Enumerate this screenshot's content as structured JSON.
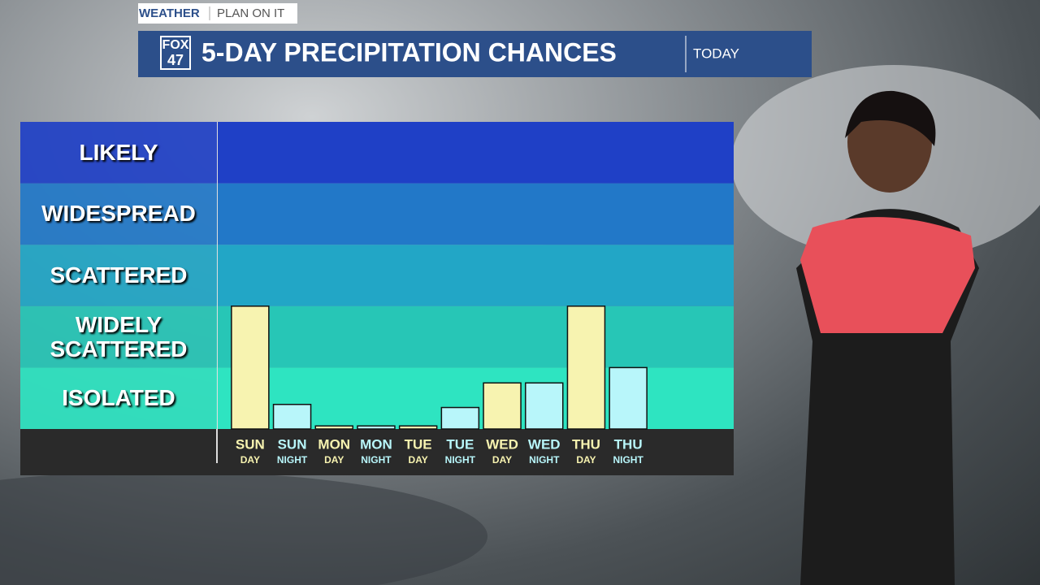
{
  "header": {
    "section": "WEATHER",
    "tagline": "PLAN ON IT",
    "logo_top": "FOX",
    "logo_bottom": "47",
    "badge": "TODAY"
  },
  "chart_data": {
    "type": "bar",
    "title": "5-DAY PRECIPITATION CHANCES",
    "categories": [
      "SUN",
      "SUN",
      "MON",
      "MON",
      "TUE",
      "TUE",
      "WED",
      "WED",
      "THU",
      "THU"
    ],
    "category_periods": [
      "DAY",
      "NIGHT",
      "DAY",
      "NIGHT",
      "DAY",
      "NIGHT",
      "DAY",
      "NIGHT",
      "DAY",
      "NIGHT"
    ],
    "values": [
      2.0,
      0.4,
      0.05,
      0.05,
      0.05,
      0.35,
      0.75,
      0.75,
      2.0,
      1.0
    ],
    "colors": [
      "#f7f3b0",
      "#b8f6fa",
      "#f7f3b0",
      "#b8f6fa",
      "#f7f3b0",
      "#b8f6fa",
      "#f7f3b0",
      "#b8f6fa",
      "#f7f3b0",
      "#b8f6fa"
    ],
    "ylim": [
      0,
      5
    ],
    "yticks": [
      {
        "value": 0.5,
        "label": "ISOLATED"
      },
      {
        "value": 1.5,
        "label": "WIDELY SCATTERED"
      },
      {
        "value": 2.5,
        "label": "SCATTERED"
      },
      {
        "value": 3.5,
        "label": "WIDESPREAD"
      },
      {
        "value": 4.5,
        "label": "LIKELY"
      }
    ],
    "band_colors": [
      "#2ee4c1",
      "#27c6b6",
      "#22a6c6",
      "#2278c8",
      "#1f40c6"
    ]
  }
}
